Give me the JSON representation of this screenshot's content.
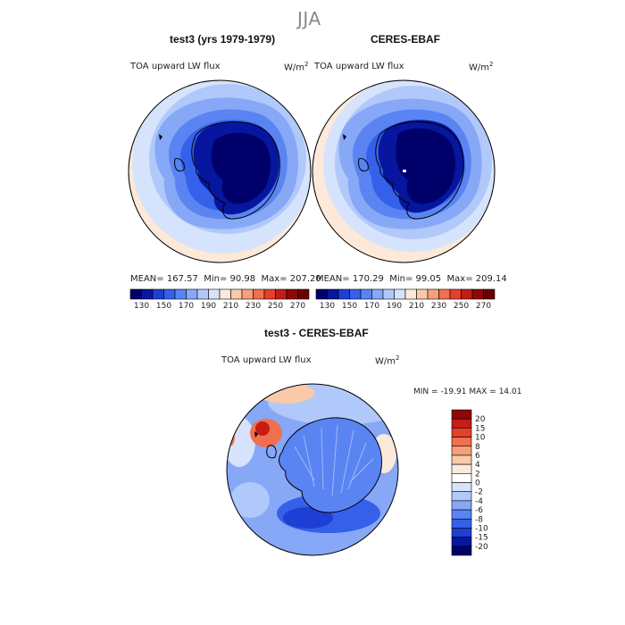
{
  "figure": {
    "suptitle": "JJA"
  },
  "panels": {
    "model": {
      "title": "test3 (yrs 1979-1979)",
      "variable": "TOA upward LW flux",
      "units_base": "W/m",
      "units_exp": "2",
      "mean_label": "MEAN=",
      "mean": "167.57",
      "min_label": "Min=",
      "min": "90.98",
      "max_label": "Max=",
      "max": "207.20"
    },
    "obs": {
      "title": "CERES-EBAF",
      "variable": "TOA upward LW flux",
      "units_base": "W/m",
      "units_exp": "2",
      "mean_label": "MEAN=",
      "mean": "170.29",
      "min_label": "Min=",
      "min": "99.05",
      "max_label": "Max=",
      "max": "209.14"
    },
    "diff": {
      "title": "test3 - CERES-EBAF",
      "variable": "TOA upward LW flux",
      "units_base": "W/m",
      "units_exp": "2",
      "min_label": "MIN =",
      "min": "-19.91",
      "max_label": "MAX =",
      "max": "14.01"
    }
  },
  "chart_data": [
    {
      "type": "heatmap",
      "projection": "south-polar-stereographic",
      "title": "test3 (yrs 1979-1979)",
      "variable": "TOA upward LW flux",
      "units": "W/m^2",
      "stats": {
        "mean": 167.57,
        "min": 90.98,
        "max": 207.2
      },
      "colorbar": {
        "orientation": "horizontal",
        "levels": [
          130,
          140,
          150,
          160,
          170,
          180,
          190,
          200,
          210,
          220,
          230,
          240,
          250,
          260,
          270
        ],
        "tick_labels": [
          "130",
          "150",
          "170",
          "190",
          "210",
          "230",
          "250",
          "270"
        ],
        "colors": [
          "#00006b",
          "#07169e",
          "#1e3fd3",
          "#3560ea",
          "#5a84f2",
          "#86a8f6",
          "#b1c8fa",
          "#d6e3fc",
          "#fce9d9",
          "#f9c9a9",
          "#f5a07c",
          "#f06f4e",
          "#e4402a",
          "#c41d16",
          "#8e0808",
          "#6b0000"
        ]
      }
    },
    {
      "type": "heatmap",
      "projection": "south-polar-stereographic",
      "title": "CERES-EBAF",
      "variable": "TOA upward LW flux",
      "units": "W/m^2",
      "stats": {
        "mean": 170.29,
        "min": 99.05,
        "max": 209.14
      },
      "colorbar": {
        "orientation": "horizontal",
        "levels": [
          130,
          140,
          150,
          160,
          170,
          180,
          190,
          200,
          210,
          220,
          230,
          240,
          250,
          260,
          270
        ],
        "tick_labels": [
          "130",
          "150",
          "170",
          "190",
          "210",
          "230",
          "250",
          "270"
        ],
        "colors": [
          "#00006b",
          "#07169e",
          "#1e3fd3",
          "#3560ea",
          "#5a84f2",
          "#86a8f6",
          "#b1c8fa",
          "#d6e3fc",
          "#fce9d9",
          "#f9c9a9",
          "#f5a07c",
          "#f06f4e",
          "#e4402a",
          "#c41d16",
          "#8e0808",
          "#6b0000"
        ]
      }
    },
    {
      "type": "heatmap",
      "projection": "south-polar-stereographic",
      "title": "test3 - CERES-EBAF",
      "variable": "TOA upward LW flux",
      "units": "W/m^2",
      "stats": {
        "min": -19.91,
        "max": 14.01
      },
      "colorbar": {
        "orientation": "vertical",
        "tick_labels": [
          "20",
          "15",
          "10",
          "8",
          "6",
          "4",
          "2",
          "0",
          "-2",
          "-4",
          "-6",
          "-8",
          "-10",
          "-15",
          "-20"
        ],
        "colors": [
          "#8e0808",
          "#c41d16",
          "#e4402a",
          "#f06f4e",
          "#f5a07c",
          "#f9c9a9",
          "#fce9d9",
          "#ffffff",
          "#d6e3fc",
          "#b1c8fa",
          "#86a8f6",
          "#5a84f2",
          "#3560ea",
          "#1e3fd3",
          "#07169e",
          "#00006b"
        ]
      }
    }
  ]
}
